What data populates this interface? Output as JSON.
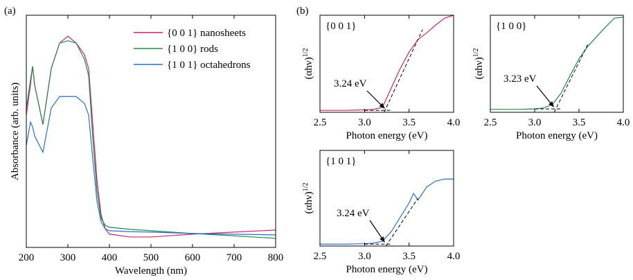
{
  "chart_data": [
    {
      "type": "line",
      "panel_label": "(a)",
      "xlabel": "Wavelength (nm)",
      "ylabel": "Absorbance (arb. units)",
      "x": [
        200,
        210,
        215,
        220,
        240,
        260,
        280,
        300,
        320,
        340,
        350,
        360,
        370,
        380,
        390,
        400,
        450,
        500,
        600,
        700,
        800
      ],
      "xlim": [
        200,
        800
      ],
      "xticks": [
        200,
        300,
        400,
        500,
        600,
        700,
        800
      ],
      "ylim": [
        0,
        1
      ],
      "legend": "upper right",
      "series": [
        {
          "name": "{0 0 1} nanosheets",
          "color": "#c8246f",
          "values": [
            0.57,
            0.7,
            0.78,
            0.7,
            0.53,
            0.77,
            0.88,
            0.91,
            0.88,
            0.83,
            0.77,
            0.53,
            0.29,
            0.14,
            0.08,
            0.057,
            0.045,
            0.045,
            0.057,
            0.066,
            0.075
          ]
        },
        {
          "name": "{1 0 0} rods",
          "color": "#23884a",
          "values": [
            0.6,
            0.72,
            0.78,
            0.7,
            0.53,
            0.77,
            0.88,
            0.89,
            0.88,
            0.81,
            0.74,
            0.47,
            0.245,
            0.125,
            0.095,
            0.087,
            0.078,
            0.072,
            0.06,
            0.05,
            0.039
          ]
        },
        {
          "name": "{1 0 1} octahedrons",
          "color": "#2a6fc9",
          "values": [
            0.44,
            0.54,
            0.52,
            0.48,
            0.41,
            0.6,
            0.65,
            0.65,
            0.65,
            0.62,
            0.57,
            0.38,
            0.2,
            0.11,
            0.08,
            0.072,
            0.068,
            0.066,
            0.06,
            0.057,
            0.054
          ]
        }
      ]
    },
    {
      "type": "line",
      "panel_label": "(b)",
      "inset_label": "{0 0 1}",
      "annotation": "3.24 eV",
      "xlabel": "Photon energy (eV)",
      "ylabel": "(αhν)",
      "ylabel_superscript": "1/2",
      "xlim": [
        2.5,
        4.0
      ],
      "xticks": [
        2.5,
        {
          "value": 3,
          "label": "3.0"
        },
        3.5,
        {
          "value": 4,
          "label": "4.0"
        }
      ],
      "ylim": [
        0,
        1
      ],
      "series": [
        {
          "color": "#c8246f",
          "x": [
            2.5,
            2.8,
            3.0,
            3.1,
            3.2,
            3.3,
            3.4,
            3.5,
            3.6,
            3.7,
            3.8,
            3.9,
            4.0
          ],
          "values": [
            0.02,
            0.02,
            0.025,
            0.03,
            0.05,
            0.25,
            0.45,
            0.62,
            0.75,
            0.82,
            0.9,
            0.97,
            1.0
          ]
        },
        {
          "color": "#000000",
          "dashed": true,
          "x": [
            3.22,
            3.65
          ],
          "values": [
            0,
            0.85
          ]
        },
        {
          "color": "#000000",
          "dashed": true,
          "x": [
            3.0,
            3.3
          ],
          "values": [
            0.02,
            0.02
          ]
        }
      ]
    },
    {
      "type": "line",
      "inset_label": "{1 0 0}",
      "annotation": "3.23 eV",
      "xlabel": "Photon energy (eV)",
      "ylabel": "(αhν)",
      "ylabel_superscript": "1/2",
      "xlim": [
        2.5,
        4.0
      ],
      "xticks": [
        2.5,
        {
          "value": 3,
          "label": "3.0"
        },
        3.5,
        {
          "value": 4,
          "label": "4.0"
        }
      ],
      "ylim": [
        0,
        1
      ],
      "series": [
        {
          "color": "#23884a",
          "x": [
            2.5,
            2.8,
            3.0,
            3.1,
            3.2,
            3.3,
            3.4,
            3.5,
            3.6,
            3.7,
            3.8,
            3.9,
            4.0
          ],
          "values": [
            0.03,
            0.03,
            0.035,
            0.045,
            0.08,
            0.2,
            0.38,
            0.55,
            0.68,
            0.78,
            0.88,
            0.97,
            0.98
          ]
        },
        {
          "color": "#000000",
          "dashed": true,
          "x": [
            3.22,
            3.6
          ],
          "values": [
            0,
            0.7
          ]
        },
        {
          "color": "#000000",
          "dashed": true,
          "x": [
            3.0,
            3.3
          ],
          "values": [
            0.035,
            0.035
          ]
        }
      ]
    },
    {
      "type": "line",
      "inset_label": "{1 0 1}",
      "annotation": "3.24 eV",
      "xlabel": "Photon energy (eV)",
      "ylabel": "(αhν)",
      "ylabel_superscript": "1/2",
      "xlim": [
        2.5,
        4.0
      ],
      "xticks": [
        2.5,
        {
          "value": 3,
          "label": "3.0"
        },
        3.5,
        {
          "value": 4,
          "label": "4.0"
        }
      ],
      "ylim": [
        0,
        1
      ],
      "series": [
        {
          "color": "#2a6fc9",
          "x": [
            2.5,
            2.8,
            3.0,
            3.1,
            3.2,
            3.3,
            3.4,
            3.5,
            3.55,
            3.6,
            3.7,
            3.8,
            3.9,
            4.0
          ],
          "values": [
            0.02,
            0.02,
            0.025,
            0.03,
            0.05,
            0.15,
            0.3,
            0.45,
            0.55,
            0.48,
            0.62,
            0.68,
            0.7,
            0.7
          ]
        },
        {
          "color": "#000000",
          "dashed": true,
          "x": [
            3.24,
            3.6
          ],
          "values": [
            0,
            0.5
          ]
        },
        {
          "color": "#000000",
          "dashed": true,
          "x": [
            3.0,
            3.3
          ],
          "values": [
            0.02,
            0.02
          ]
        }
      ]
    }
  ]
}
